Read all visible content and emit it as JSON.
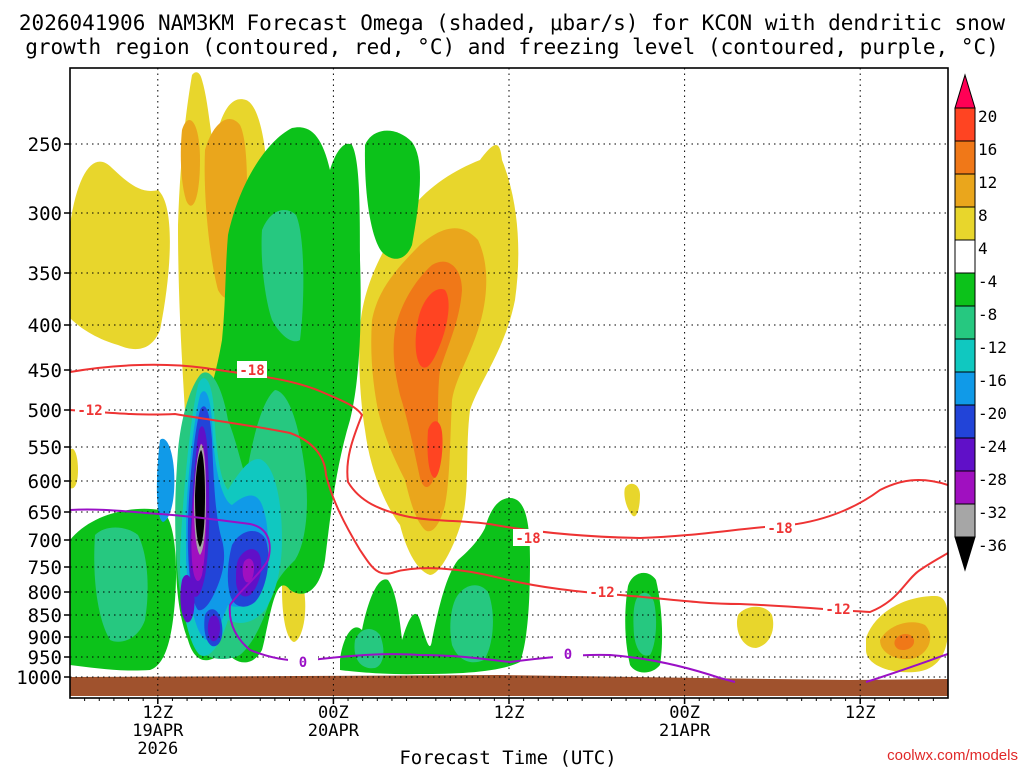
{
  "chart_data": {
    "type": "heatmap",
    "title_line1": "2026041906 NAM3KM Forecast Omega (shaded, μbar/s) for KCON with dendritic snow",
    "title_line2": "growth region (contoured, red, °C) and freezing level (contoured, purple, °C)",
    "xlabel": "Forecast Time (UTC)",
    "credit": "coolwx.com/models",
    "y_axis": {
      "unit": "hPa",
      "ticks": [
        250,
        300,
        350,
        400,
        450,
        500,
        550,
        600,
        650,
        700,
        750,
        800,
        850,
        900,
        950,
        1000
      ],
      "range": [
        1025,
        200
      ]
    },
    "x_axis": {
      "unit": "hours since 2026-04-19 06Z",
      "range": [
        0,
        60
      ],
      "ticks": [
        {
          "hour": 6,
          "labels": [
            "12Z",
            "19APR",
            "2026"
          ]
        },
        {
          "hour": 18,
          "labels": [
            "00Z",
            "20APR"
          ]
        },
        {
          "hour": 30,
          "labels": [
            "12Z"
          ]
        },
        {
          "hour": 42,
          "labels": [
            "00Z",
            "21APR"
          ]
        },
        {
          "hour": 54,
          "labels": [
            "12Z"
          ]
        }
      ]
    },
    "colorbar": {
      "unit": "μbar/s",
      "levels": [
        20,
        16,
        12,
        8,
        4,
        -4,
        -8,
        -12,
        -16,
        -20,
        -24,
        -28,
        -32,
        -36
      ],
      "colors": [
        "#ff0055",
        "#ff4422",
        "#f07818",
        "#eaa61c",
        "#e8d62c",
        "#ffffff",
        "#0cc21a",
        "#26c880",
        "#10c8c0",
        "#109ae8",
        "#2244d8",
        "#6010c8",
        "#a010c0",
        "#a6a6a6",
        "#000000"
      ]
    },
    "contour_labels": [
      {
        "field": "temperature",
        "value": "-18",
        "color": "#ee3333"
      },
      {
        "field": "temperature",
        "value": "-12",
        "color": "#ee3333"
      },
      {
        "field": "temperature",
        "value": "-18",
        "color": "#ee3333"
      },
      {
        "field": "temperature",
        "value": "-18",
        "color": "#ee3333"
      },
      {
        "field": "temperature",
        "value": "-12",
        "color": "#ee3333"
      },
      {
        "field": "temperature",
        "value": "-12",
        "color": "#ee3333"
      },
      {
        "field": "freezing_level",
        "value": "0",
        "color": "#9a10c6"
      },
      {
        "field": "freezing_level",
        "value": "0",
        "color": "#9a10c6"
      }
    ]
  }
}
